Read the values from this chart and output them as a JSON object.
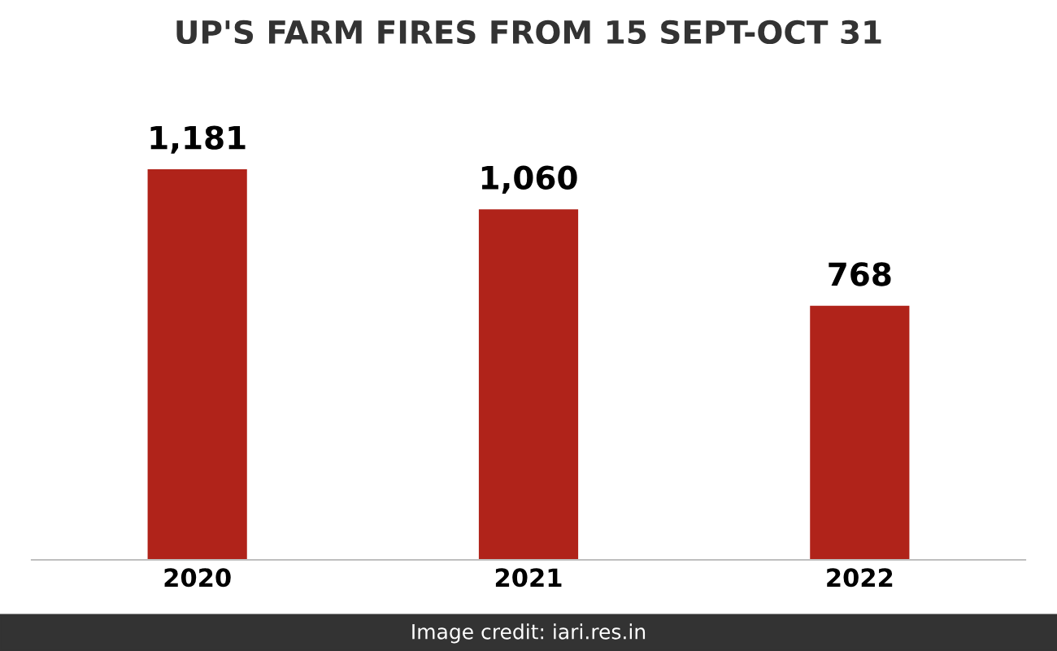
{
  "chart_data": {
    "type": "bar",
    "title": "UP'S FARM FIRES FROM 15 SEPT-OCT 31",
    "categories": [
      "2020",
      "2021",
      "2022"
    ],
    "values": [
      1181,
      1060,
      768
    ],
    "color": "#b0231a",
    "data_labels": true,
    "value_labels": [
      "1,181",
      "1,060",
      "768"
    ],
    "grid": false,
    "legend": false,
    "annotations": [
      "Image credit: iari.res.in"
    ]
  }
}
